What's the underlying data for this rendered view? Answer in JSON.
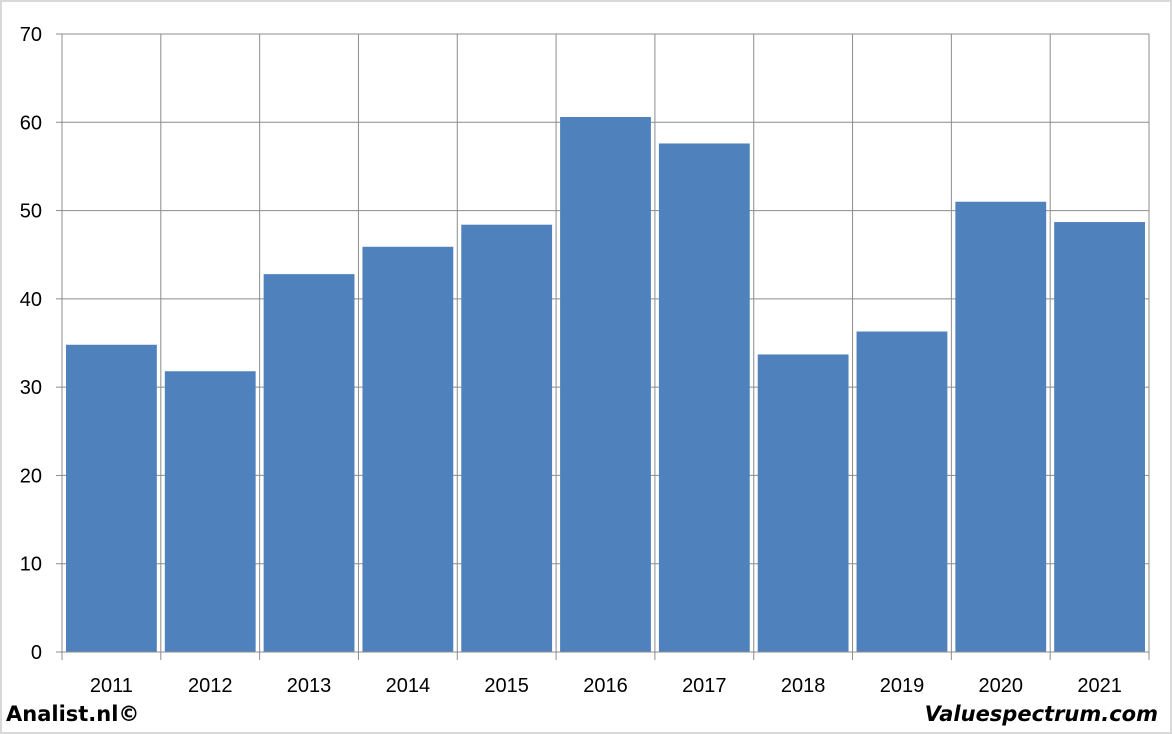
{
  "chart_data": {
    "type": "bar",
    "categories": [
      "2011",
      "2012",
      "2013",
      "2014",
      "2015",
      "2016",
      "2017",
      "2018",
      "2019",
      "2020",
      "2021"
    ],
    "values": [
      34.8,
      31.8,
      42.8,
      45.9,
      48.4,
      60.6,
      57.6,
      33.7,
      36.3,
      51.0,
      48.7
    ],
    "ylim": [
      0,
      70
    ],
    "yticks": [
      "0",
      "10",
      "20",
      "30",
      "40",
      "50",
      "60",
      "70"
    ],
    "grid": true,
    "bar_color": "#4f81bd"
  },
  "footer": {
    "left": "Analist.nl©",
    "right": "Valuespectrum.com"
  }
}
